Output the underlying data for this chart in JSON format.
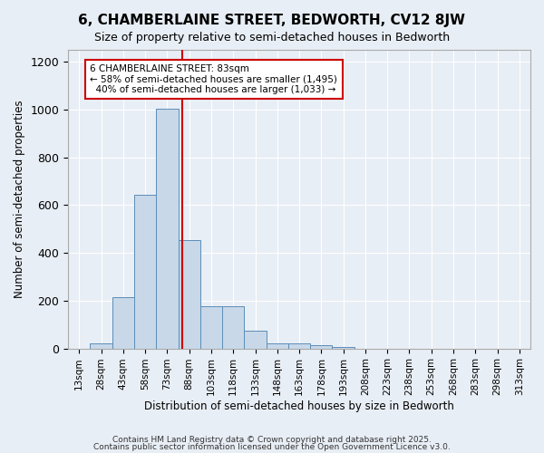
{
  "title": "6, CHAMBERLAINE STREET, BEDWORTH, CV12 8JW",
  "subtitle": "Size of property relative to semi-detached houses in Bedworth",
  "xlabel": "Distribution of semi-detached houses by size in Bedworth",
  "ylabel": "Number of semi-detached properties",
  "bin_labels": [
    "13sqm",
    "28sqm",
    "43sqm",
    "58sqm",
    "73sqm",
    "88sqm",
    "103sqm",
    "118sqm",
    "133sqm",
    "148sqm",
    "163sqm",
    "178sqm",
    "193sqm",
    "208sqm",
    "223sqm",
    "238sqm",
    "253sqm",
    "268sqm",
    "283sqm",
    "298sqm",
    "313sqm"
  ],
  "bar_heights": [
    0,
    20,
    215,
    645,
    1005,
    455,
    175,
    175,
    75,
    20,
    20,
    15,
    5,
    0,
    0,
    0,
    0,
    0,
    0,
    0,
    0
  ],
  "bar_color": "#c8d8e8",
  "bar_edge_color": "#5b8db8",
  "property_value": 83,
  "property_label": "6 CHAMBERLAINE STREET: 83sqm",
  "pct_smaller": "58%",
  "count_smaller": "1,495",
  "pct_larger": "40%",
  "count_larger": "1,033",
  "vline_color": "#cc0000",
  "annotation_box_edge": "#cc0000",
  "ylim": [
    0,
    1250
  ],
  "yticks": [
    0,
    200,
    400,
    600,
    800,
    1000,
    1200
  ],
  "background_color": "#e8eef5",
  "footer_line1": "Contains HM Land Registry data © Crown copyright and database right 2025.",
  "footer_line2": "Contains public sector information licensed under the Open Government Licence v3.0."
}
